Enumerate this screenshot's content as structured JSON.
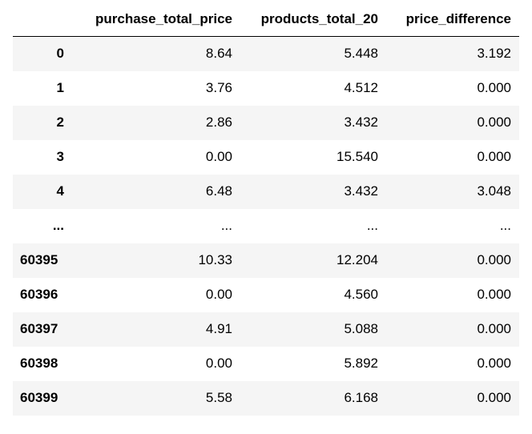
{
  "dataframe": {
    "index_header": "",
    "columns": [
      "purchase_total_price",
      "products_total_20",
      "price_difference"
    ],
    "rows": [
      {
        "index": "0",
        "values": [
          "8.64",
          "5.448",
          "3.192"
        ]
      },
      {
        "index": "1",
        "values": [
          "3.76",
          "4.512",
          "0.000"
        ]
      },
      {
        "index": "2",
        "values": [
          "2.86",
          "3.432",
          "0.000"
        ]
      },
      {
        "index": "3",
        "values": [
          "0.00",
          "15.540",
          "0.000"
        ]
      },
      {
        "index": "4",
        "values": [
          "6.48",
          "3.432",
          "3.048"
        ]
      },
      {
        "index": "...",
        "values": [
          "...",
          "...",
          "..."
        ]
      },
      {
        "index": "60395",
        "values": [
          "10.33",
          "12.204",
          "0.000"
        ]
      },
      {
        "index": "60396",
        "values": [
          "0.00",
          "4.560",
          "0.000"
        ]
      },
      {
        "index": "60397",
        "values": [
          "4.91",
          "5.088",
          "0.000"
        ]
      },
      {
        "index": "60398",
        "values": [
          "0.00",
          "5.892",
          "0.000"
        ]
      },
      {
        "index": "60399",
        "values": [
          "5.58",
          "6.168",
          "0.000"
        ]
      }
    ]
  }
}
